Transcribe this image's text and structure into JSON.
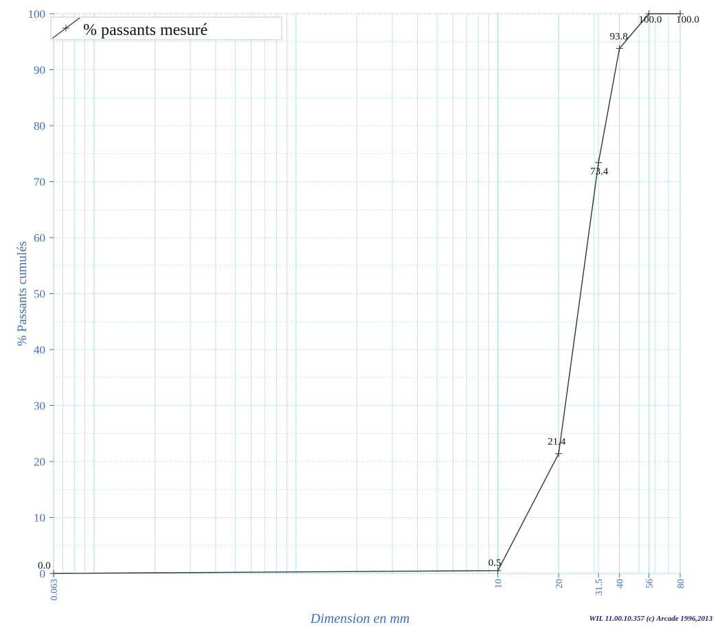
{
  "chart_data": {
    "type": "line",
    "x_scale": "log",
    "xlabel": "Dimension en mm",
    "ylabel": "% Passants cumulés",
    "ylim": [
      0,
      100
    ],
    "xlim": [
      0.063,
      80
    ],
    "y_ticks": [
      "0",
      "10",
      "20",
      "30",
      "40",
      "50",
      "60",
      "70",
      "80",
      "90",
      "100"
    ],
    "x_ticks": [
      {
        "value": 0.063,
        "label": "0.063"
      },
      {
        "value": 10,
        "label": "10"
      },
      {
        "value": 20,
        "label": "20"
      },
      {
        "value": 31.5,
        "label": "31.5"
      },
      {
        "value": 40,
        "label": "40"
      },
      {
        "value": 56,
        "label": "56"
      },
      {
        "value": 80,
        "label": "80"
      }
    ],
    "grid": true,
    "legend_position": "top-left",
    "series": [
      {
        "name": "% passants mesuré",
        "color": "#333333",
        "points": [
          {
            "x": 0.063,
            "y": 0.0,
            "label": "0.0"
          },
          {
            "x": 10,
            "y": 0.5,
            "label": "0.5"
          },
          {
            "x": 20,
            "y": 21.4,
            "label": "21.4"
          },
          {
            "x": 31.5,
            "y": 73.4,
            "label": "73.4"
          },
          {
            "x": 40,
            "y": 93.8,
            "label": "93.8"
          },
          {
            "x": 56,
            "y": 100.0,
            "label": "100.0"
          },
          {
            "x": 80,
            "y": 100.0,
            "label": "100.0"
          }
        ]
      }
    ],
    "colors": {
      "axis_text": "#3b6fc4",
      "grid": "#a9e0e6",
      "line": "#333333"
    }
  },
  "footer": {
    "credit": "WIL 11.00.10.357 (c) Arcade 1996,2013"
  }
}
